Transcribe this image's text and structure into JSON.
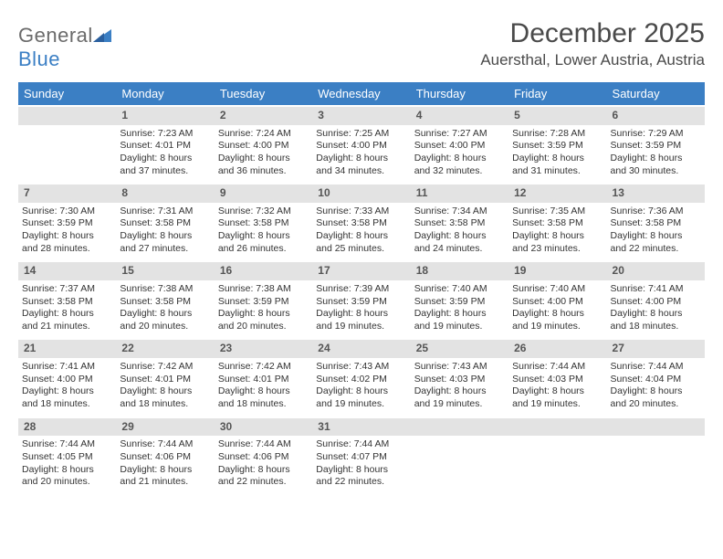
{
  "logo": {
    "word1": "General",
    "word2": "Blue"
  },
  "title": "December 2025",
  "location": "Auersthal, Lower Austria, Austria",
  "colors": {
    "header_bg": "#3b7fc4",
    "header_text": "#ffffff",
    "daynum_bg": "#e3e3e3",
    "daynum_text": "#555555",
    "body_text": "#333333",
    "page_bg": "#ffffff",
    "logo_gray": "#6b6b6b",
    "logo_blue": "#3b7fc4"
  },
  "typography": {
    "title_fontsize": 30,
    "location_fontsize": 17,
    "dayheader_fontsize": 13,
    "daynum_fontsize": 12,
    "cell_fontsize": 10.5,
    "logo_fontsize": 22
  },
  "day_names": [
    "Sunday",
    "Monday",
    "Tuesday",
    "Wednesday",
    "Thursday",
    "Friday",
    "Saturday"
  ],
  "weeks": [
    [
      {
        "num": "",
        "l1": "",
        "l2": "",
        "l3": "",
        "l4": ""
      },
      {
        "num": "1",
        "l1": "Sunrise: 7:23 AM",
        "l2": "Sunset: 4:01 PM",
        "l3": "Daylight: 8 hours",
        "l4": "and 37 minutes."
      },
      {
        "num": "2",
        "l1": "Sunrise: 7:24 AM",
        "l2": "Sunset: 4:00 PM",
        "l3": "Daylight: 8 hours",
        "l4": "and 36 minutes."
      },
      {
        "num": "3",
        "l1": "Sunrise: 7:25 AM",
        "l2": "Sunset: 4:00 PM",
        "l3": "Daylight: 8 hours",
        "l4": "and 34 minutes."
      },
      {
        "num": "4",
        "l1": "Sunrise: 7:27 AM",
        "l2": "Sunset: 4:00 PM",
        "l3": "Daylight: 8 hours",
        "l4": "and 32 minutes."
      },
      {
        "num": "5",
        "l1": "Sunrise: 7:28 AM",
        "l2": "Sunset: 3:59 PM",
        "l3": "Daylight: 8 hours",
        "l4": "and 31 minutes."
      },
      {
        "num": "6",
        "l1": "Sunrise: 7:29 AM",
        "l2": "Sunset: 3:59 PM",
        "l3": "Daylight: 8 hours",
        "l4": "and 30 minutes."
      }
    ],
    [
      {
        "num": "7",
        "l1": "Sunrise: 7:30 AM",
        "l2": "Sunset: 3:59 PM",
        "l3": "Daylight: 8 hours",
        "l4": "and 28 minutes."
      },
      {
        "num": "8",
        "l1": "Sunrise: 7:31 AM",
        "l2": "Sunset: 3:58 PM",
        "l3": "Daylight: 8 hours",
        "l4": "and 27 minutes."
      },
      {
        "num": "9",
        "l1": "Sunrise: 7:32 AM",
        "l2": "Sunset: 3:58 PM",
        "l3": "Daylight: 8 hours",
        "l4": "and 26 minutes."
      },
      {
        "num": "10",
        "l1": "Sunrise: 7:33 AM",
        "l2": "Sunset: 3:58 PM",
        "l3": "Daylight: 8 hours",
        "l4": "and 25 minutes."
      },
      {
        "num": "11",
        "l1": "Sunrise: 7:34 AM",
        "l2": "Sunset: 3:58 PM",
        "l3": "Daylight: 8 hours",
        "l4": "and 24 minutes."
      },
      {
        "num": "12",
        "l1": "Sunrise: 7:35 AM",
        "l2": "Sunset: 3:58 PM",
        "l3": "Daylight: 8 hours",
        "l4": "and 23 minutes."
      },
      {
        "num": "13",
        "l1": "Sunrise: 7:36 AM",
        "l2": "Sunset: 3:58 PM",
        "l3": "Daylight: 8 hours",
        "l4": "and 22 minutes."
      }
    ],
    [
      {
        "num": "14",
        "l1": "Sunrise: 7:37 AM",
        "l2": "Sunset: 3:58 PM",
        "l3": "Daylight: 8 hours",
        "l4": "and 21 minutes."
      },
      {
        "num": "15",
        "l1": "Sunrise: 7:38 AM",
        "l2": "Sunset: 3:58 PM",
        "l3": "Daylight: 8 hours",
        "l4": "and 20 minutes."
      },
      {
        "num": "16",
        "l1": "Sunrise: 7:38 AM",
        "l2": "Sunset: 3:59 PM",
        "l3": "Daylight: 8 hours",
        "l4": "and 20 minutes."
      },
      {
        "num": "17",
        "l1": "Sunrise: 7:39 AM",
        "l2": "Sunset: 3:59 PM",
        "l3": "Daylight: 8 hours",
        "l4": "and 19 minutes."
      },
      {
        "num": "18",
        "l1": "Sunrise: 7:40 AM",
        "l2": "Sunset: 3:59 PM",
        "l3": "Daylight: 8 hours",
        "l4": "and 19 minutes."
      },
      {
        "num": "19",
        "l1": "Sunrise: 7:40 AM",
        "l2": "Sunset: 4:00 PM",
        "l3": "Daylight: 8 hours",
        "l4": "and 19 minutes."
      },
      {
        "num": "20",
        "l1": "Sunrise: 7:41 AM",
        "l2": "Sunset: 4:00 PM",
        "l3": "Daylight: 8 hours",
        "l4": "and 18 minutes."
      }
    ],
    [
      {
        "num": "21",
        "l1": "Sunrise: 7:41 AM",
        "l2": "Sunset: 4:00 PM",
        "l3": "Daylight: 8 hours",
        "l4": "and 18 minutes."
      },
      {
        "num": "22",
        "l1": "Sunrise: 7:42 AM",
        "l2": "Sunset: 4:01 PM",
        "l3": "Daylight: 8 hours",
        "l4": "and 18 minutes."
      },
      {
        "num": "23",
        "l1": "Sunrise: 7:42 AM",
        "l2": "Sunset: 4:01 PM",
        "l3": "Daylight: 8 hours",
        "l4": "and 18 minutes."
      },
      {
        "num": "24",
        "l1": "Sunrise: 7:43 AM",
        "l2": "Sunset: 4:02 PM",
        "l3": "Daylight: 8 hours",
        "l4": "and 19 minutes."
      },
      {
        "num": "25",
        "l1": "Sunrise: 7:43 AM",
        "l2": "Sunset: 4:03 PM",
        "l3": "Daylight: 8 hours",
        "l4": "and 19 minutes."
      },
      {
        "num": "26",
        "l1": "Sunrise: 7:44 AM",
        "l2": "Sunset: 4:03 PM",
        "l3": "Daylight: 8 hours",
        "l4": "and 19 minutes."
      },
      {
        "num": "27",
        "l1": "Sunrise: 7:44 AM",
        "l2": "Sunset: 4:04 PM",
        "l3": "Daylight: 8 hours",
        "l4": "and 20 minutes."
      }
    ],
    [
      {
        "num": "28",
        "l1": "Sunrise: 7:44 AM",
        "l2": "Sunset: 4:05 PM",
        "l3": "Daylight: 8 hours",
        "l4": "and 20 minutes."
      },
      {
        "num": "29",
        "l1": "Sunrise: 7:44 AM",
        "l2": "Sunset: 4:06 PM",
        "l3": "Daylight: 8 hours",
        "l4": "and 21 minutes."
      },
      {
        "num": "30",
        "l1": "Sunrise: 7:44 AM",
        "l2": "Sunset: 4:06 PM",
        "l3": "Daylight: 8 hours",
        "l4": "and 22 minutes."
      },
      {
        "num": "31",
        "l1": "Sunrise: 7:44 AM",
        "l2": "Sunset: 4:07 PM",
        "l3": "Daylight: 8 hours",
        "l4": "and 22 minutes."
      },
      {
        "num": "",
        "l1": "",
        "l2": "",
        "l3": "",
        "l4": ""
      },
      {
        "num": "",
        "l1": "",
        "l2": "",
        "l3": "",
        "l4": ""
      },
      {
        "num": "",
        "l1": "",
        "l2": "",
        "l3": "",
        "l4": ""
      }
    ]
  ]
}
